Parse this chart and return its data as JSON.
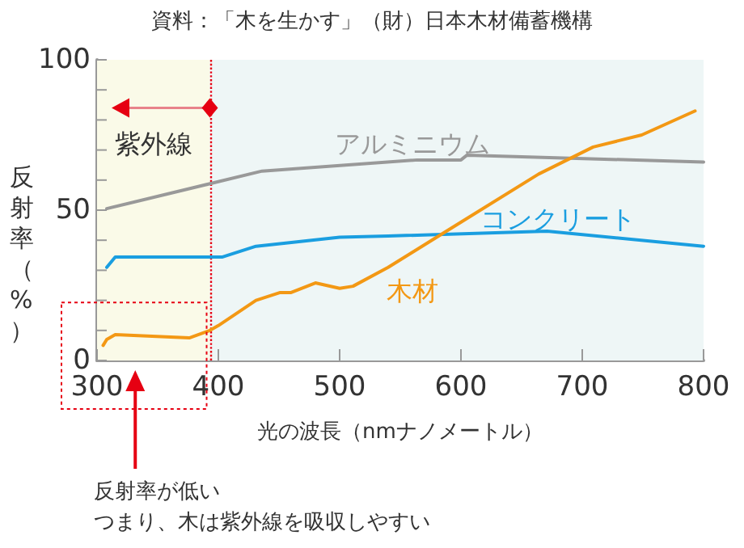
{
  "chart_data": {
    "type": "line",
    "title": "資料：「木を生かす」（財）日本木材備蓄機構",
    "xlabel": "光の波長（nmナノメートル）",
    "ylabel": "反射率（%）",
    "xlim": [
      300,
      800
    ],
    "xticks": [
      300,
      400,
      500,
      600,
      700,
      800
    ],
    "ylim": [
      0,
      100
    ],
    "yticks": [
      0,
      {
        "value": 10,
        "label": null
      },
      {
        "value": 20,
        "label": null
      },
      {
        "value": 30,
        "label": null
      },
      {
        "value": 40,
        "label": null
      },
      50,
      {
        "value": 60,
        "label": null
      },
      {
        "value": 70,
        "label": null
      },
      {
        "value": 80,
        "label": null
      },
      {
        "value": 90,
        "label": null
      },
      100
    ],
    "grid": false,
    "legend": false,
    "marker": "none",
    "line_style": "solid",
    "series": [
      {
        "name": "アルミニウム",
        "color": "#999999",
        "x": [
          308,
          436,
          564,
          600,
          605,
          800
        ],
        "values": [
          50.5,
          63,
          66.7,
          66.7,
          68.3,
          66
        ]
      },
      {
        "name": "コンクリート",
        "color": "#1a9ee0",
        "x": [
          308,
          315,
          403,
          431,
          500,
          540,
          671,
          800
        ],
        "values": [
          31,
          34.4,
          34.4,
          38,
          41,
          41.4,
          43,
          38
        ]
      },
      {
        "name": "木材",
        "color": "#f39814",
        "x": [
          305,
          308,
          315,
          376,
          393,
          400,
          431,
          451,
          460,
          480,
          500,
          511,
          540,
          584,
          664,
          709,
          749,
          793
        ],
        "values": [
          5,
          7,
          8.6,
          7.5,
          10,
          11.6,
          20,
          22.6,
          22.6,
          25.8,
          24,
          24.7,
          31,
          42,
          62,
          71,
          75,
          83
        ]
      }
    ],
    "bands": [
      {
        "axis": "x",
        "from": 300,
        "to": 393,
        "label": "紫外線",
        "color": "#fafae8"
      },
      {
        "axis": "x",
        "from": 393,
        "to": 800,
        "color": "#eef6f6"
      }
    ],
    "ref_lines": [
      {
        "axis": "x",
        "value": 393,
        "color": "#e60012",
        "line_style": "dotted"
      }
    ],
    "annotations": [
      "反射率が低い",
      "つまり、木は紫外線を吸収しやすい"
    ]
  }
}
